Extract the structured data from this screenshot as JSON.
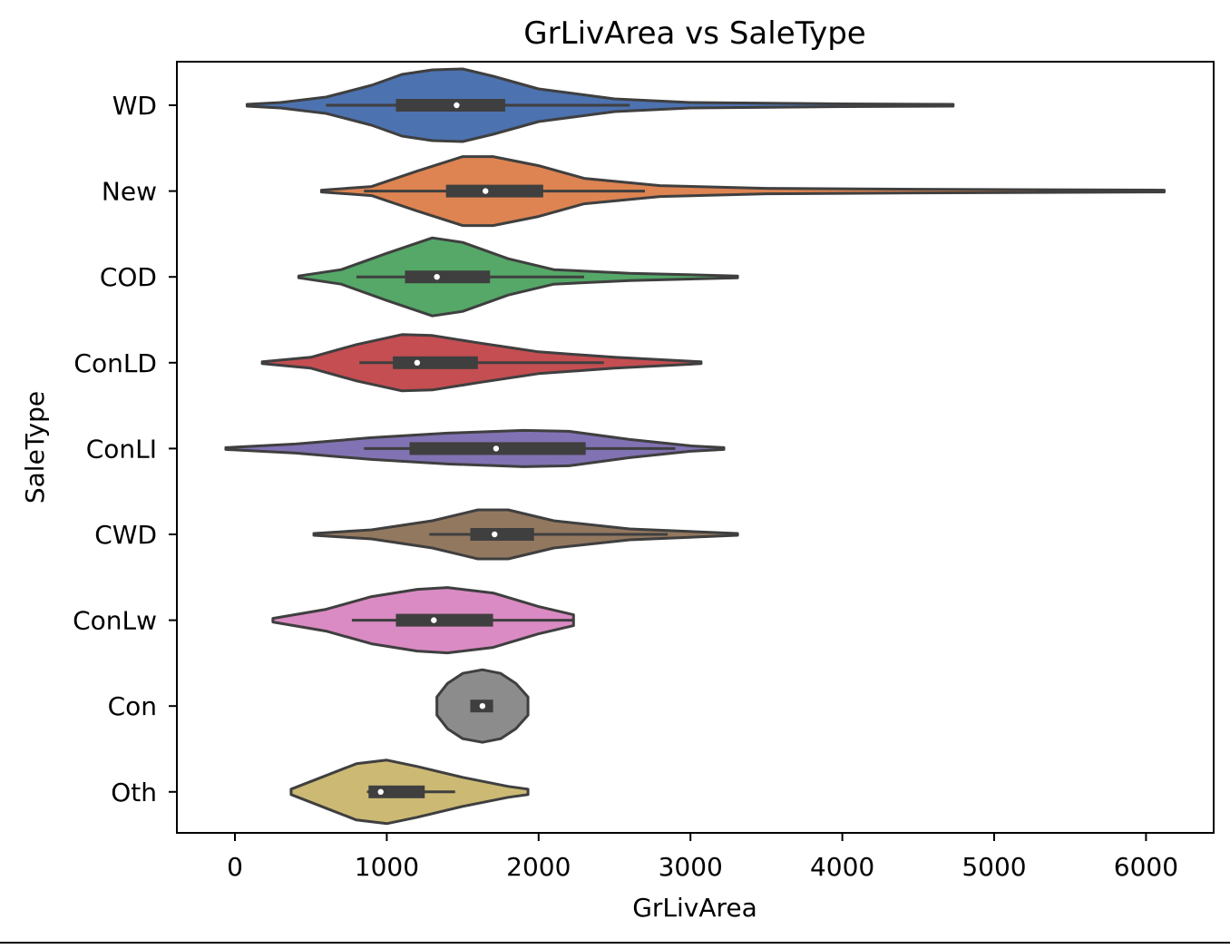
{
  "chart_data": {
    "type": "violin",
    "orientation": "horizontal",
    "title": "GrLivArea vs SaleType",
    "xlabel": "GrLivArea",
    "ylabel": "SaleType",
    "xlim": [
      -380,
      6450
    ],
    "x_ticks": [
      0,
      1000,
      2000,
      3000,
      4000,
      5000,
      6000
    ],
    "grid": false,
    "legend": null,
    "categories": [
      "WD",
      "New",
      "COD",
      "ConLD",
      "ConLI",
      "CWD",
      "ConLw",
      "Con",
      "Oth"
    ],
    "series": [
      {
        "category": "WD",
        "color": "#4c72b0",
        "min": 80,
        "q1": 1060,
        "median": 1460,
        "q3": 1780,
        "max": 4730,
        "whisker_low": 600,
        "whisker_high": 2600,
        "density": [
          [
            80,
            0.01
          ],
          [
            300,
            0.03
          ],
          [
            600,
            0.09
          ],
          [
            900,
            0.22
          ],
          [
            1100,
            0.34
          ],
          [
            1300,
            0.39
          ],
          [
            1500,
            0.4
          ],
          [
            1700,
            0.32
          ],
          [
            2000,
            0.18
          ],
          [
            2500,
            0.07
          ],
          [
            3000,
            0.03
          ],
          [
            4000,
            0.015
          ],
          [
            4730,
            0.01
          ]
        ]
      },
      {
        "category": "New",
        "color": "#dd8452",
        "min": 570,
        "q1": 1390,
        "median": 1650,
        "q3": 2030,
        "max": 6120,
        "whisker_low": 850,
        "whisker_high": 2700,
        "density": [
          [
            570,
            0.01
          ],
          [
            900,
            0.05
          ],
          [
            1200,
            0.22
          ],
          [
            1500,
            0.38
          ],
          [
            1700,
            0.38
          ],
          [
            2000,
            0.28
          ],
          [
            2300,
            0.14
          ],
          [
            2800,
            0.06
          ],
          [
            3500,
            0.03
          ],
          [
            4500,
            0.02
          ],
          [
            6120,
            0.01
          ]
        ]
      },
      {
        "category": "COD",
        "color": "#55a868",
        "min": 420,
        "q1": 1120,
        "median": 1330,
        "q3": 1680,
        "max": 3310,
        "whisker_low": 800,
        "whisker_high": 2300,
        "density": [
          [
            420,
            0.01
          ],
          [
            700,
            0.08
          ],
          [
            1000,
            0.26
          ],
          [
            1300,
            0.43
          ],
          [
            1500,
            0.38
          ],
          [
            1800,
            0.2
          ],
          [
            2100,
            0.08
          ],
          [
            2600,
            0.04
          ],
          [
            3310,
            0.01
          ]
        ]
      },
      {
        "category": "ConLD",
        "color": "#c44e52",
        "min": 180,
        "q1": 1040,
        "median": 1200,
        "q3": 1600,
        "max": 3070,
        "whisker_low": 820,
        "whisker_high": 2430,
        "density": [
          [
            180,
            0.01
          ],
          [
            500,
            0.06
          ],
          [
            800,
            0.2
          ],
          [
            1100,
            0.31
          ],
          [
            1300,
            0.3
          ],
          [
            1600,
            0.22
          ],
          [
            2000,
            0.12
          ],
          [
            2500,
            0.06
          ],
          [
            3070,
            0.01
          ]
        ]
      },
      {
        "category": "ConLI",
        "color": "#8172b3",
        "min": -60,
        "q1": 1150,
        "median": 1720,
        "q3": 2310,
        "max": 3220,
        "whisker_low": 850,
        "whisker_high": 2900,
        "density": [
          [
            -60,
            0.01
          ],
          [
            400,
            0.05
          ],
          [
            900,
            0.12
          ],
          [
            1400,
            0.17
          ],
          [
            1900,
            0.2
          ],
          [
            2200,
            0.19
          ],
          [
            2600,
            0.1
          ],
          [
            3000,
            0.03
          ],
          [
            3220,
            0.01
          ]
        ]
      },
      {
        "category": "CWD",
        "color": "#937860",
        "min": 520,
        "q1": 1550,
        "median": 1710,
        "q3": 1970,
        "max": 3310,
        "whisker_low": 1280,
        "whisker_high": 2850,
        "density": [
          [
            520,
            0.01
          ],
          [
            900,
            0.05
          ],
          [
            1300,
            0.15
          ],
          [
            1600,
            0.27
          ],
          [
            1800,
            0.27
          ],
          [
            2100,
            0.15
          ],
          [
            2600,
            0.06
          ],
          [
            3310,
            0.01
          ]
        ]
      },
      {
        "category": "ConLw",
        "color": "#da8bc3",
        "min": 250,
        "q1": 1060,
        "median": 1310,
        "q3": 1700,
        "max": 2230,
        "whisker_low": 770,
        "whisker_high": 2230,
        "density": [
          [
            250,
            0.02
          ],
          [
            600,
            0.12
          ],
          [
            900,
            0.26
          ],
          [
            1200,
            0.34
          ],
          [
            1400,
            0.36
          ],
          [
            1700,
            0.3
          ],
          [
            2000,
            0.15
          ],
          [
            2230,
            0.06
          ]
        ]
      },
      {
        "category": "Con",
        "color": "#8c8c8c",
        "min": 1330,
        "q1": 1550,
        "median": 1630,
        "q3": 1700,
        "max": 1930,
        "whisker_low": 1550,
        "whisker_high": 1700,
        "density": [
          [
            1330,
            0.1
          ],
          [
            1400,
            0.25
          ],
          [
            1500,
            0.36
          ],
          [
            1630,
            0.4
          ],
          [
            1750,
            0.36
          ],
          [
            1850,
            0.25
          ],
          [
            1930,
            0.1
          ]
        ]
      },
      {
        "category": "Oth",
        "color": "#ccb974",
        "min": 370,
        "q1": 880,
        "median": 960,
        "q3": 1250,
        "max": 1930,
        "whisker_low": 870,
        "whisker_high": 1450,
        "density": [
          [
            370,
            0.03
          ],
          [
            600,
            0.18
          ],
          [
            800,
            0.31
          ],
          [
            1000,
            0.35
          ],
          [
            1200,
            0.28
          ],
          [
            1500,
            0.16
          ],
          [
            1800,
            0.06
          ],
          [
            1930,
            0.03
          ]
        ]
      }
    ]
  }
}
